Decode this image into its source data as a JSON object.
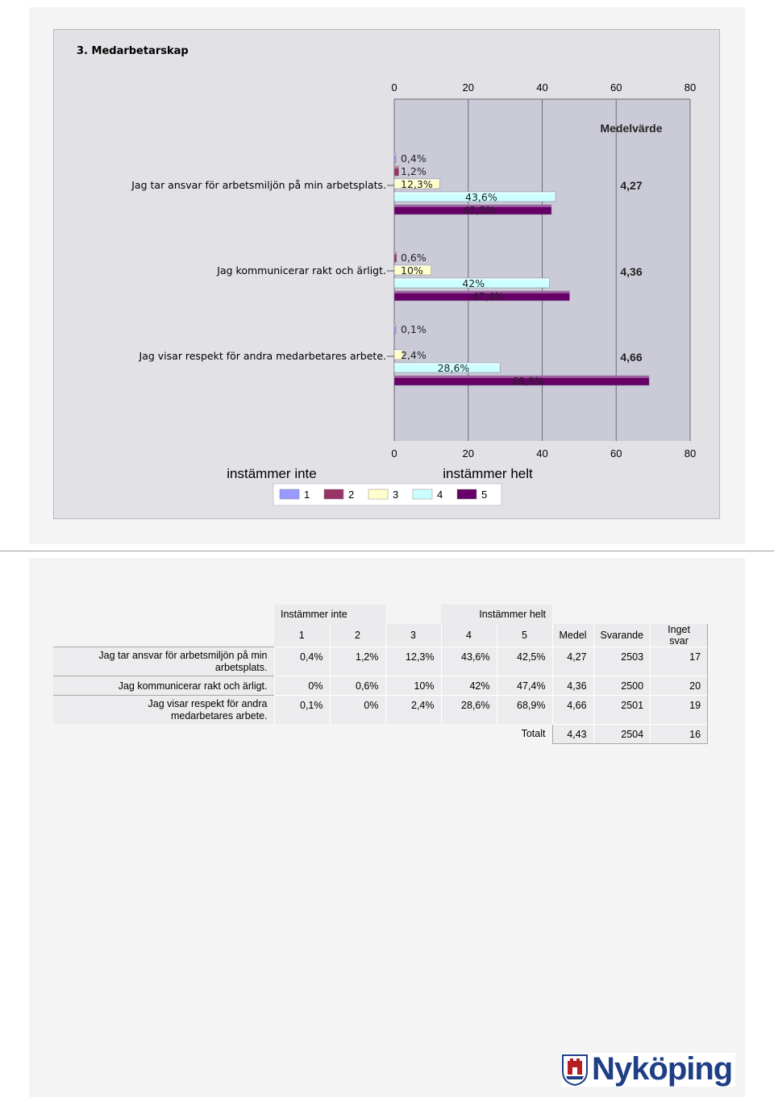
{
  "chart_data": {
    "type": "bar",
    "orientation": "horizontal",
    "title": "3. Medarbetarskap",
    "x_ticks": [
      "0",
      "20",
      "40",
      "60",
      "80"
    ],
    "xlim": [
      0,
      80
    ],
    "grid": true,
    "mean_header": "Medelvärde",
    "scale_low_label": "instämmer inte",
    "scale_high_label": "instämmer helt",
    "categories": [
      "Jag tar ansvar för arbetsmiljön på min arbetsplats.",
      "Jag kommunicerar rakt och ärligt.",
      "Jag visar respekt för andra medarbetares arbete."
    ],
    "series": [
      {
        "name": "1",
        "color": "#9999ff",
        "values": [
          0.4,
          0,
          0.1
        ],
        "labels": [
          "0,4%",
          "",
          "0,1%"
        ]
      },
      {
        "name": "2",
        "color": "#993366",
        "values": [
          1.2,
          0.6,
          0
        ],
        "labels": [
          "1,2%",
          "0,6%",
          ""
        ]
      },
      {
        "name": "3",
        "color": "#ffffcc",
        "values": [
          12.3,
          10,
          2.4
        ],
        "labels": [
          "12,3%",
          "10%",
          "2,4%"
        ]
      },
      {
        "name": "4",
        "color": "#ccffff",
        "values": [
          43.6,
          42,
          28.6
        ],
        "labels": [
          "43,6%",
          "42%",
          "28,6%"
        ]
      },
      {
        "name": "5",
        "color": "#660066",
        "values": [
          42.5,
          47.4,
          68.9
        ],
        "labels": [
          "42,5%",
          "47,4%",
          "68,9%"
        ]
      }
    ],
    "means": [
      "4,27",
      "4,36",
      "4,66"
    ]
  },
  "table": {
    "group_low": "Instämmer inte",
    "group_high": "Instämmer helt",
    "columns": [
      "1",
      "2",
      "3",
      "4",
      "5",
      "Medel",
      "Svarande",
      "Inget svar"
    ],
    "rows": [
      {
        "label": "Jag tar ansvar för arbetsmiljön på min arbetsplats.",
        "values": [
          "0,4%",
          "1,2%",
          "12,3%",
          "43,6%",
          "42,5%",
          "4,27",
          "2503",
          "17"
        ]
      },
      {
        "label": "Jag kommunicerar rakt och ärligt.",
        "values": [
          "0%",
          "0,6%",
          "10%",
          "42%",
          "47,4%",
          "4,36",
          "2500",
          "20"
        ]
      },
      {
        "label": "Jag visar respekt för andra medarbetares arbete.",
        "values": [
          "0,1%",
          "0%",
          "2,4%",
          "28,6%",
          "68,9%",
          "4,66",
          "2501",
          "19"
        ]
      }
    ],
    "total": {
      "label": "Totalt",
      "values": [
        "4,43",
        "2504",
        "16"
      ]
    }
  },
  "logo": {
    "text": "Nyköping"
  }
}
